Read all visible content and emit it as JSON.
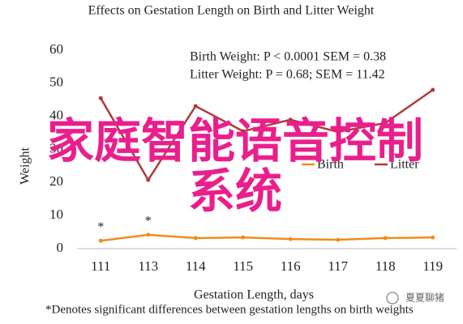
{
  "chart_data": {
    "type": "line",
    "title": "Effects on Gestation Length on Birth and Litter Weight",
    "annotations": [
      "Birth Weight: P < 0.0001 SEM = 0.38",
      "Litter Weight: P = 0.68; SEM = 11.42"
    ],
    "x_label": "Gestation Length, days",
    "y_label": "Weight",
    "footnote": "*Denotes significant differences between gestation lengths on birth weights",
    "categories": [
      "111",
      "113",
      "114",
      "115",
      "116",
      "117",
      "118",
      "119"
    ],
    "series": [
      {
        "name": "Birth",
        "color": "#f08c1c",
        "values": [
          2.4,
          4.2,
          3.2,
          3.4,
          2.9,
          2.7,
          3.2,
          3.4
        ],
        "significance_labels": [
          "*",
          "*"
        ]
      },
      {
        "name": "Litter",
        "color": "#b03a3a",
        "values": [
          45.5,
          20.8,
          43.1,
          35.5,
          39,
          35.3,
          38,
          48
        ]
      }
    ],
    "ylim": [
      0,
      60
    ],
    "yticks": [
      0,
      10,
      20,
      30,
      40,
      50,
      60
    ],
    "grid": false,
    "legend": "inside-center-right"
  },
  "overlay": {
    "watermark": [
      "家庭智能语音控制",
      "系统"
    ],
    "badge": "夏夏聊猪"
  }
}
